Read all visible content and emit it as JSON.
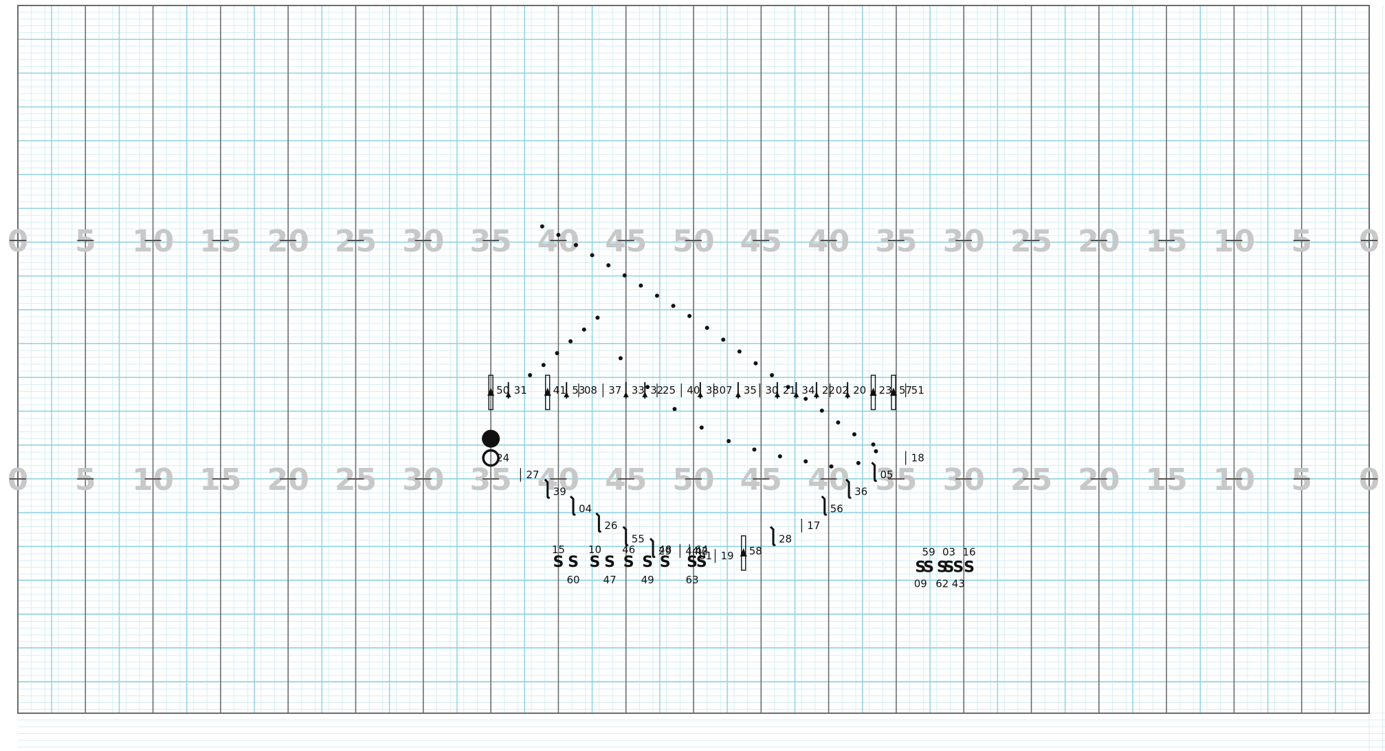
{
  "colors": {
    "minor_grid": "#d4eef4",
    "major_grid": "#8fd3e2",
    "yard_line": "#6b6b6b",
    "yard_number": "#c8c8c8",
    "performer": "#111111"
  },
  "field": {
    "yard_numbers": [
      "0",
      "5",
      "10",
      "15",
      "20",
      "25",
      "30",
      "35",
      "40",
      "45",
      "50",
      "45",
      "40",
      "35",
      "30",
      "25",
      "20",
      "15",
      "10",
      "5",
      "0"
    ]
  },
  "performers": [
    {
      "label": "50",
      "shape": "trombone",
      "x": 35.0,
      "y": 19.1
    },
    {
      "label": "31",
      "shape": "trumpet",
      "x": 36.3,
      "y": 19.1
    },
    {
      "label": "41",
      "shape": "trombone",
      "x": 39.2,
      "y": 19.1
    },
    {
      "label": "53",
      "shape": "trumpet",
      "x": 40.6,
      "y": 19.1
    },
    {
      "label": "08",
      "shape": "tick",
      "x": 41.5,
      "y": 19.1
    },
    {
      "label": "37",
      "shape": "tick",
      "x": 43.3,
      "y": 19.1
    },
    {
      "label": "33",
      "shape": "trumpet",
      "x": 45.0,
      "y": 19.1
    },
    {
      "label": "32",
      "shape": "trumpet",
      "x": 46.4,
      "y": 19.1
    },
    {
      "label": "25",
      "shape": "tick",
      "x": 47.3,
      "y": 19.1
    },
    {
      "label": "40",
      "shape": "tick",
      "x": 49.1,
      "y": 19.1
    },
    {
      "label": "38",
      "shape": "trumpet",
      "x": 50.5,
      "y": 19.1
    },
    {
      "label": "07",
      "shape": "tick",
      "x": 51.5,
      "y": 19.1
    },
    {
      "label": "35",
      "shape": "trumpet",
      "x": 53.3,
      "y": 19.1
    },
    {
      "label": "30",
      "shape": "tick",
      "x": 54.9,
      "y": 19.1
    },
    {
      "label": "21",
      "shape": "trumpet",
      "x": 56.2,
      "y": 19.1
    },
    {
      "label": "34",
      "shape": "trumpet",
      "x": 57.6,
      "y": 19.1
    },
    {
      "label": "22",
      "shape": "trumpet",
      "x": 59.1,
      "y": 19.1
    },
    {
      "label": "02",
      "shape": "tick",
      "x": 60.1,
      "y": 19.1
    },
    {
      "label": "20",
      "shape": "trumpet",
      "x": 61.4,
      "y": 19.1
    },
    {
      "label": "23",
      "shape": "trombone",
      "x": 63.3,
      "y": 19.1
    },
    {
      "label": "57",
      "shape": "trombone",
      "x": 64.8,
      "y": 19.1
    },
    {
      "label": "51",
      "shape": "tick",
      "x": 65.7,
      "y": 19.1
    },
    {
      "label": "24",
      "shape": "sousa",
      "x": 35.0,
      "y": 15.1
    },
    {
      "label": "18",
      "shape": "tick",
      "x": 65.7,
      "y": 15.1
    },
    {
      "label": "27",
      "shape": "tick",
      "x": 37.2,
      "y": 14.1
    },
    {
      "label": "05",
      "shape": "sax",
      "x": 63.4,
      "y": 14.1
    },
    {
      "label": "39",
      "shape": "sax",
      "x": 39.2,
      "y": 13.1
    },
    {
      "label": "36",
      "shape": "sax",
      "x": 61.5,
      "y": 13.1
    },
    {
      "label": "04",
      "shape": "sax",
      "x": 41.1,
      "y": 12.1
    },
    {
      "label": "56",
      "shape": "sax",
      "x": 59.7,
      "y": 12.1
    },
    {
      "label": "26",
      "shape": "sax",
      "x": 43.0,
      "y": 11.1
    },
    {
      "label": "17",
      "shape": "tick",
      "x": 58.0,
      "y": 11.1
    },
    {
      "label": "55",
      "shape": "sax",
      "x": 45.0,
      "y": 10.3
    },
    {
      "label": "28",
      "shape": "sax",
      "x": 55.9,
      "y": 10.3
    },
    {
      "label": "29",
      "shape": "sax",
      "x": 47.0,
      "y": 9.6
    },
    {
      "label": "58",
      "shape": "trombone",
      "x": 53.7,
      "y": 9.6
    },
    {
      "label": "19",
      "shape": "tick",
      "x": 51.6,
      "y": 9.3
    },
    {
      "label": "44",
      "shape": "tick",
      "x": 49.0,
      "y": 9.6
    },
    {
      "label": "42",
      "shape": "tick",
      "x": 49.7,
      "y": 9.6
    },
    {
      "label": "01",
      "shape": "tick",
      "x": 50.0,
      "y": 9.3
    },
    {
      "label": "15",
      "shape": "snare",
      "x": 40.0,
      "y": 8.9
    },
    {
      "label": "60",
      "shape": "snare",
      "x": 41.1,
      "y": 8.9
    },
    {
      "label": "10",
      "shape": "snare",
      "x": 42.7,
      "y": 8.9
    },
    {
      "label": "47",
      "shape": "snare",
      "x": 43.8,
      "y": 8.9
    },
    {
      "label": "46",
      "shape": "snare",
      "x": 45.2,
      "y": 8.9
    },
    {
      "label": "49",
      "shape": "snare",
      "x": 46.6,
      "y": 8.9
    },
    {
      "label": "48",
      "shape": "snare",
      "x": 47.9,
      "y": 8.9
    },
    {
      "label": "63",
      "shape": "snare",
      "x": 49.9,
      "y": 8.9
    },
    {
      "label": "64",
      "shape": "snare",
      "x": 50.6,
      "y": 8.9
    },
    {
      "label": "09",
      "shape": "sousa-s",
      "x": 66.8,
      "y": 8.6
    },
    {
      "label": "59",
      "shape": "sousa-s",
      "x": 67.4,
      "y": 8.6
    },
    {
      "label": "62",
      "shape": "sousa-s",
      "x": 68.4,
      "y": 8.6
    },
    {
      "label": "03",
      "shape": "sousa-s",
      "x": 68.9,
      "y": 8.6
    },
    {
      "label": "43",
      "shape": "sousa-s",
      "x": 69.6,
      "y": 8.6
    },
    {
      "label": "16",
      "shape": "sousa-s",
      "x": 70.4,
      "y": 8.6
    }
  ],
  "drill_dots": [
    [
      38.8,
      28.8
    ],
    [
      40.0,
      28.3
    ],
    [
      41.3,
      27.7
    ],
    [
      42.5,
      27.1
    ],
    [
      43.7,
      26.5
    ],
    [
      44.9,
      25.9
    ],
    [
      46.1,
      25.3
    ],
    [
      47.3,
      24.7
    ],
    [
      48.5,
      24.1
    ],
    [
      49.7,
      23.5
    ],
    [
      51.0,
      22.8
    ],
    [
      52.2,
      22.1
    ],
    [
      53.4,
      21.4
    ],
    [
      54.6,
      20.7
    ],
    [
      55.8,
      20.0
    ],
    [
      57.0,
      19.3
    ],
    [
      58.3,
      18.6
    ],
    [
      59.5,
      17.9
    ],
    [
      60.7,
      17.2
    ],
    [
      61.9,
      16.5
    ],
    [
      63.3,
      15.9
    ],
    [
      37.9,
      20.0
    ],
    [
      38.9,
      20.6
    ],
    [
      39.9,
      21.3
    ],
    [
      40.9,
      22.0
    ],
    [
      41.9,
      22.7
    ],
    [
      42.9,
      23.4
    ],
    [
      44.6,
      21.0
    ],
    [
      46.6,
      19.3
    ],
    [
      48.6,
      18.0
    ],
    [
      50.6,
      16.9
    ],
    [
      52.6,
      16.1
    ],
    [
      54.5,
      15.6
    ],
    [
      56.4,
      15.2
    ],
    [
      58.3,
      14.9
    ],
    [
      60.2,
      14.6
    ],
    [
      62.2,
      14.8
    ],
    [
      63.5,
      15.5
    ]
  ]
}
